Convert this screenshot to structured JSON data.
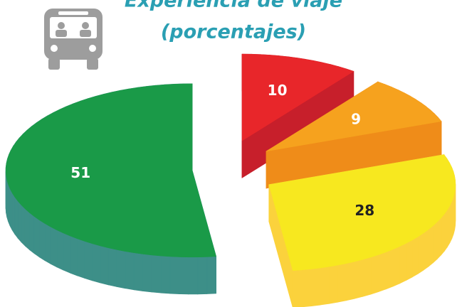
{
  "chart_data": {
    "type": "pie3d",
    "title": "Experiencia de viaje",
    "subtitle": "(porcentajes)",
    "values": [
      10,
      9,
      28,
      51
    ],
    "colors": [
      "#e8262a",
      "#f6a21e",
      "#f7e81f",
      "#1a9a48"
    ],
    "side_colors": [
      "#c71f2b",
      "#ef8c19",
      "#fbd23c",
      "#3d8f88"
    ],
    "label_colors": [
      "#ffffff",
      "#ffffff",
      "#222222",
      "#ffffff"
    ]
  }
}
